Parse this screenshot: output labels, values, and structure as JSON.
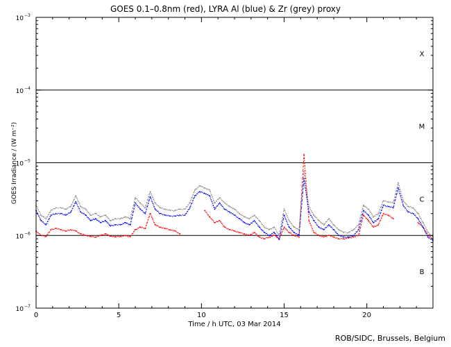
{
  "chart_data": {
    "type": "scatter",
    "title": "GOES 0.1–0.8nm (red), LYRA Al (blue) & Zr (grey) proxy",
    "xlabel": "Time / h UTC, 03 Mar 2014",
    "ylabel": "GOES Irradiance / (W m⁻²)",
    "y_scale": "log",
    "xlim": [
      0,
      24
    ],
    "ylim": [
      1e-07,
      0.001
    ],
    "x_ticks": [
      0,
      5,
      10,
      15,
      20
    ],
    "y_ticks": [
      1e-07,
      1e-06,
      1e-05,
      0.0001,
      0.001
    ],
    "y_tick_labels": [
      {
        "base": "10",
        "exp": "−7"
      },
      {
        "base": "10",
        "exp": "−6"
      },
      {
        "base": "10",
        "exp": "−5"
      },
      {
        "base": "10",
        "exp": "−4"
      },
      {
        "base": "10",
        "exp": "−3"
      }
    ],
    "flare_class_lines": [
      1e-06,
      1e-05,
      0.0001
    ],
    "flare_classes": [
      {
        "label": "B",
        "y": 3.2e-07
      },
      {
        "label": "C",
        "y": 3.2e-06
      },
      {
        "label": "M",
        "y": 3.2e-05
      },
      {
        "label": "X",
        "y": 0.00032
      }
    ],
    "series": [
      {
        "name": "red",
        "color": "#ff0000",
        "x": [
          0.0,
          0.3,
          0.6,
          0.9,
          1.2,
          1.5,
          1.8,
          2.1,
          2.4,
          2.7,
          3.0,
          3.3,
          3.6,
          3.9,
          4.2,
          4.5,
          4.8,
          5.1,
          5.4,
          5.7,
          6.0,
          6.3,
          6.6,
          6.9,
          7.2,
          7.5,
          7.8,
          8.1,
          8.4,
          8.7,
          9.0,
          9.3,
          9.6,
          9.9,
          10.2,
          10.5,
          10.8,
          11.1,
          11.4,
          11.7,
          12.0,
          12.3,
          12.6,
          12.9,
          13.2,
          13.5,
          13.8,
          14.1,
          14.4,
          14.7,
          15.0,
          15.3,
          15.6,
          15.9,
          16.2,
          16.5,
          16.8,
          17.1,
          17.4,
          17.7,
          18.0,
          18.3,
          18.6,
          18.9,
          19.2,
          19.5,
          19.8,
          20.1,
          20.4,
          20.7,
          21.0,
          21.3,
          21.6,
          21.9,
          22.2,
          22.5,
          22.8,
          23.1,
          23.4,
          23.7,
          24.0
        ],
        "y": [
          1.15e-06,
          1e-06,
          9.7e-07,
          1.2e-06,
          1.25e-06,
          1.2e-06,
          1.15e-06,
          1.2e-06,
          1.15e-06,
          1.05e-06,
          1e-06,
          9.7e-07,
          9.5e-07,
          1e-06,
          1.05e-06,
          9.8e-07,
          9.6e-07,
          9.7e-07,
          9.9e-07,
          9.6e-07,
          1.2e-06,
          1.3e-06,
          1.25e-06,
          2e-06,
          1.4e-06,
          1.3e-06,
          1.25e-06,
          1.2e-06,
          1.15e-06,
          1.05e-06,
          null,
          null,
          null,
          null,
          2.2e-06,
          1.8e-06,
          1.5e-06,
          1.6e-06,
          1.3e-06,
          1.2e-06,
          1.15e-06,
          1.1e-06,
          1.05e-06,
          1e-06,
          1.1e-06,
          9.5e-07,
          9e-07,
          9.5e-07,
          1e-06,
          9e-07,
          1.3e-06,
          1.1e-06,
          1e-06,
          9.5e-07,
          1.3e-05,
          1.6e-06,
          1.1e-06,
          1e-06,
          9.5e-07,
          1e-06,
          9.5e-07,
          9e-07,
          9e-07,
          9.2e-07,
          9.5e-07,
          1e-06,
          1.9e-06,
          1.6e-06,
          1.3e-06,
          1.4e-06,
          2e-06,
          1.9e-06,
          1.7e-06,
          null,
          null,
          null,
          null,
          1.5e-06,
          1.3e-06,
          1e-06,
          9e-07
        ]
      },
      {
        "name": "blue",
        "color": "#0000ff",
        "x": [
          0.0,
          0.3,
          0.6,
          0.9,
          1.2,
          1.5,
          1.8,
          2.1,
          2.4,
          2.7,
          3.0,
          3.3,
          3.6,
          3.9,
          4.2,
          4.5,
          4.8,
          5.1,
          5.4,
          5.7,
          6.0,
          6.3,
          6.6,
          6.9,
          7.2,
          7.5,
          7.8,
          8.1,
          8.4,
          8.7,
          9.0,
          9.3,
          9.6,
          9.9,
          10.2,
          10.5,
          10.8,
          11.1,
          11.4,
          11.7,
          12.0,
          12.3,
          12.6,
          12.9,
          13.2,
          13.5,
          13.8,
          14.1,
          14.4,
          14.7,
          15.0,
          15.3,
          15.6,
          15.9,
          16.2,
          16.5,
          16.8,
          17.1,
          17.4,
          17.7,
          18.0,
          18.3,
          18.6,
          18.9,
          19.2,
          19.5,
          19.8,
          20.1,
          20.4,
          20.7,
          21.0,
          21.3,
          21.6,
          21.9,
          22.2,
          22.5,
          22.8,
          23.1,
          23.4,
          23.7,
          24.0
        ],
        "y": [
          2.2e-06,
          1.6e-06,
          1.4e-06,
          1.9e-06,
          2e-06,
          2e-06,
          1.9e-06,
          2.1e-06,
          2.9e-06,
          2.1e-06,
          1.9e-06,
          1.6e-06,
          1.7e-06,
          1.5e-06,
          1.6e-06,
          1.35e-06,
          1.4e-06,
          1.4e-06,
          1.5e-06,
          1.4e-06,
          2.8e-06,
          2.3e-06,
          2e-06,
          3.4e-06,
          2.3e-06,
          2e-06,
          1.9e-06,
          1.85e-06,
          1.85e-06,
          1.9e-06,
          1.9e-06,
          2.4e-06,
          3.5e-06,
          4e-06,
          3.8e-06,
          3.5e-06,
          2.3e-06,
          2.8e-06,
          2.3e-06,
          2.1e-06,
          1.9e-06,
          1.7e-06,
          1.5e-06,
          1.4e-06,
          1.6e-06,
          1.3e-06,
          1.1e-06,
          1e-06,
          1.1e-06,
          8.8e-07,
          1.9e-06,
          1.3e-06,
          1.1e-06,
          1e-06,
          6e-06,
          2.1e-06,
          1.6e-06,
          1.3e-06,
          1.2e-06,
          1.4e-06,
          1.2e-06,
          1e-06,
          9.5e-07,
          9.5e-07,
          1e-06,
          1.2e-06,
          2.2e-06,
          1.9e-06,
          1.5e-06,
          1.7e-06,
          2.6e-06,
          2.5e-06,
          2.4e-06,
          4.5e-06,
          2.6e-06,
          2.1e-06,
          2e-06,
          1.7e-06,
          1.3e-06,
          9.5e-07,
          8.5e-07
        ]
      },
      {
        "name": "grey",
        "color": "#888888",
        "x": [
          0.0,
          0.3,
          0.6,
          0.9,
          1.2,
          1.5,
          1.8,
          2.1,
          2.4,
          2.7,
          3.0,
          3.3,
          3.6,
          3.9,
          4.2,
          4.5,
          4.8,
          5.1,
          5.4,
          5.7,
          6.0,
          6.3,
          6.6,
          6.9,
          7.2,
          7.5,
          7.8,
          8.1,
          8.4,
          8.7,
          9.0,
          9.3,
          9.6,
          9.9,
          10.2,
          10.5,
          10.8,
          11.1,
          11.4,
          11.7,
          12.0,
          12.3,
          12.6,
          12.9,
          13.2,
          13.5,
          13.8,
          14.1,
          14.4,
          14.7,
          15.0,
          15.3,
          15.6,
          15.9,
          16.2,
          16.5,
          16.8,
          17.1,
          17.4,
          17.7,
          18.0,
          18.3,
          18.6,
          18.9,
          19.2,
          19.5,
          19.8,
          20.1,
          20.4,
          20.7,
          21.0,
          21.3,
          21.6,
          21.9,
          22.2,
          22.5,
          22.8,
          23.1,
          23.4,
          23.7,
          24.0
        ],
        "y": [
          2.6e-06,
          1.9e-06,
          1.7e-06,
          2.2e-06,
          2.4e-06,
          2.4e-06,
          2.3e-06,
          2.5e-06,
          3.5e-06,
          2.5e-06,
          2.3e-06,
          1.9e-06,
          2e-06,
          1.8e-06,
          1.9e-06,
          1.6e-06,
          1.7e-06,
          1.7e-06,
          1.8e-06,
          1.7e-06,
          3.3e-06,
          2.8e-06,
          2.4e-06,
          4e-06,
          2.8e-06,
          2.4e-06,
          2.3e-06,
          2.2e-06,
          2.2e-06,
          2.3e-06,
          2.3e-06,
          2.8e-06,
          4.2e-06,
          4.8e-06,
          4.5e-06,
          4.2e-06,
          2.8e-06,
          3.3e-06,
          2.8e-06,
          2.5e-06,
          2.3e-06,
          2e-06,
          1.8e-06,
          1.7e-06,
          1.9e-06,
          1.6e-06,
          1.3e-06,
          1.2e-06,
          1.3e-06,
          1e-06,
          2.3e-06,
          1.6e-06,
          1.3e-06,
          1.2e-06,
          7.5e-06,
          2.5e-06,
          1.9e-06,
          1.6e-06,
          1.4e-06,
          1.7e-06,
          1.4e-06,
          1.2e-06,
          1.1e-06,
          1.1e-06,
          1.2e-06,
          1.4e-06,
          2.6e-06,
          2.3e-06,
          1.8e-06,
          2e-06,
          3e-06,
          2.9e-06,
          2.8e-06,
          5.3e-06,
          3e-06,
          2.5e-06,
          2.4e-06,
          2e-06,
          1.5e-06,
          1.1e-06,
          9.5e-07
        ]
      }
    ]
  },
  "footer": {
    "credit": "ROB/SIDC, Brussels, Belgium"
  }
}
